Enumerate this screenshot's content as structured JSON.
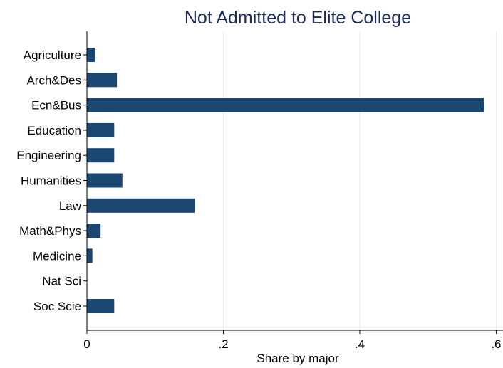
{
  "chart_data": {
    "type": "bar",
    "orientation": "horizontal",
    "title": "Not Admitted to Elite College",
    "xlabel": "Share  by major",
    "ylabel": "",
    "categories": [
      "Agriculture",
      "Arch&Des",
      "Ecn&Bus",
      "Education",
      "Engineering",
      "Humanities",
      "Law",
      "Math&Phys",
      "Medicine",
      "Nat Sci",
      "Soc Scie"
    ],
    "values": [
      0.012,
      0.044,
      0.582,
      0.04,
      0.04,
      0.052,
      0.158,
      0.02,
      0.008,
      0.0,
      0.04
    ],
    "xlim": [
      0,
      0.61
    ],
    "xticks": [
      0,
      0.2,
      0.4,
      0.6
    ],
    "xtick_labels": [
      "0",
      ".2",
      ".4",
      ".6"
    ],
    "grid": true,
    "legend": "none",
    "colors": {
      "bar": "#1a476f",
      "title": "#1a2b5c",
      "grid": "#eaeaea",
      "axis": "#000000"
    }
  }
}
